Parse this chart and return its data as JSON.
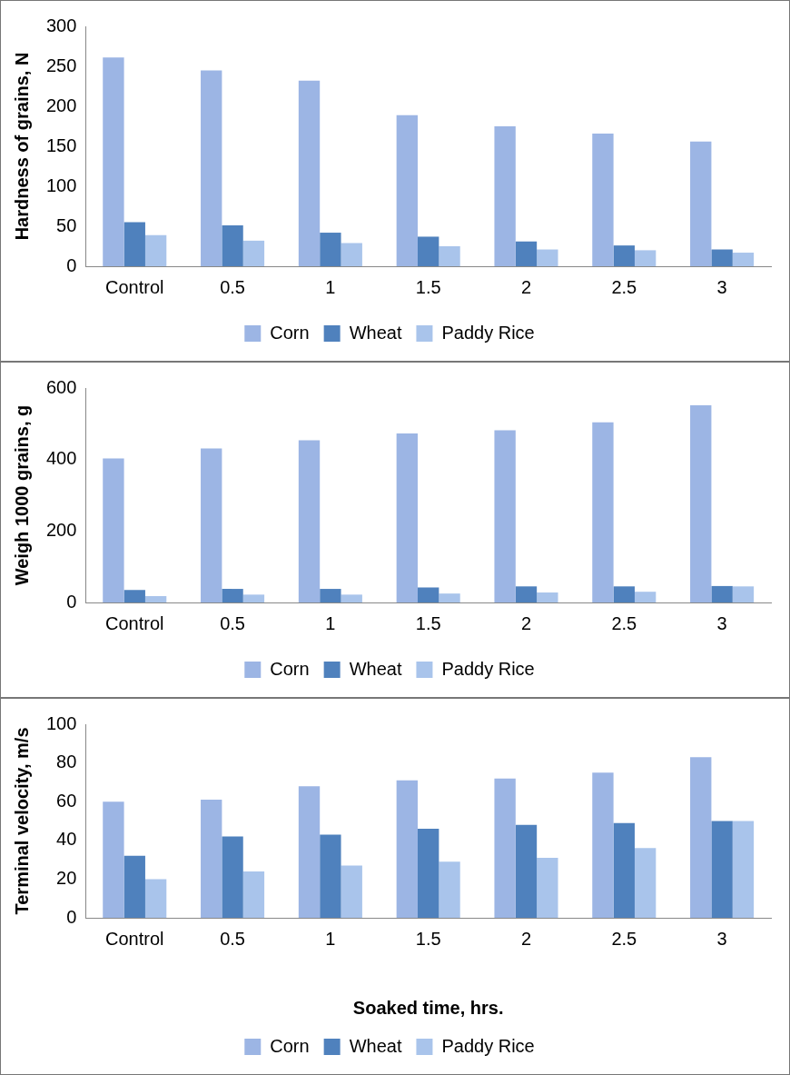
{
  "chart_data": [
    {
      "type": "bar",
      "ylabel": "Hardness of grains, N",
      "categories": [
        "Control",
        "0.5",
        "1",
        "1.5",
        "2",
        "2.5",
        "3"
      ],
      "series": [
        {
          "name": "Corn",
          "color": "#9cb5e4",
          "values": [
            261,
            245,
            232,
            189,
            175,
            166,
            156
          ]
        },
        {
          "name": "Wheat",
          "color": "#4f81bd",
          "values": [
            55,
            51,
            42,
            37,
            31,
            26,
            21
          ]
        },
        {
          "name": "Paddy Rice",
          "color": "#a9c4eb",
          "values": [
            39,
            32,
            29,
            25,
            21,
            20,
            17
          ]
        }
      ],
      "ylim": [
        0,
        300
      ],
      "yticks": [
        0,
        50,
        100,
        150,
        200,
        250,
        300
      ],
      "grid": false,
      "legend": "bottom"
    },
    {
      "type": "bar",
      "ylabel": "Weigh 1000 grains, g",
      "categories": [
        "Control",
        "0.5",
        "1",
        "1.5",
        "2",
        "2.5",
        "3"
      ],
      "series": [
        {
          "name": "Corn",
          "color": "#9cb5e4",
          "values": [
            403,
            431,
            454,
            473,
            482,
            504,
            552
          ]
        },
        {
          "name": "Wheat",
          "color": "#4f81bd",
          "values": [
            35,
            38,
            38,
            42,
            45,
            45,
            46
          ]
        },
        {
          "name": "Paddy Rice",
          "color": "#a9c4eb",
          "values": [
            18,
            22,
            22,
            25,
            28,
            30,
            45
          ]
        }
      ],
      "ylim": [
        0,
        600
      ],
      "yticks": [
        0,
        200,
        400,
        600
      ],
      "grid": false,
      "legend": "bottom"
    },
    {
      "type": "bar",
      "xlabel": "Soaked time, hrs.",
      "ylabel": "Terminal velocity, m/s",
      "categories": [
        "Control",
        "0.5",
        "1",
        "1.5",
        "2",
        "2.5",
        "3"
      ],
      "series": [
        {
          "name": "Corn",
          "color": "#9cb5e4",
          "values": [
            60,
            61,
            68,
            71,
            72,
            75,
            83
          ]
        },
        {
          "name": "Wheat",
          "color": "#4f81bd",
          "values": [
            32,
            42,
            43,
            46,
            48,
            49,
            50
          ]
        },
        {
          "name": "Paddy Rice",
          "color": "#a9c4eb",
          "values": [
            20,
            24,
            27,
            29,
            31,
            36,
            50
          ]
        }
      ],
      "ylim": [
        0,
        100
      ],
      "yticks": [
        0,
        20,
        40,
        60,
        80,
        100
      ],
      "grid": false,
      "legend": "bottom"
    }
  ]
}
